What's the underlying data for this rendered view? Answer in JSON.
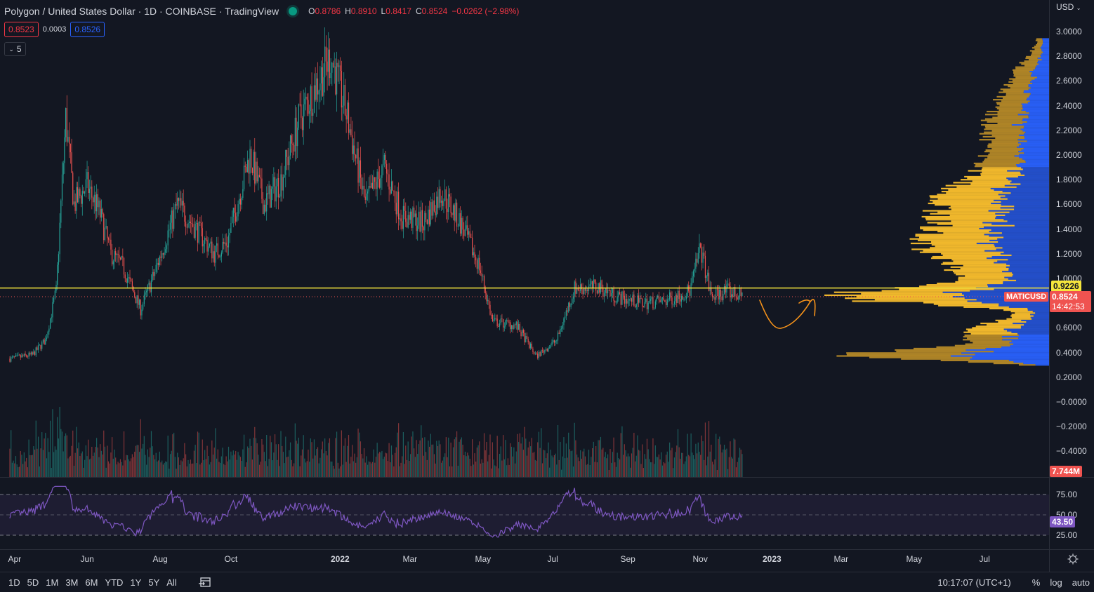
{
  "header": {
    "title": "Polygon / United States Dollar · 1D · COINBASE · TradingView",
    "ohlc": [
      {
        "key": "O",
        "value": "0.8786"
      },
      {
        "key": "H",
        "value": "0.8910"
      },
      {
        "key": "L",
        "value": "0.8417"
      },
      {
        "key": "C",
        "value": "0.8524"
      }
    ],
    "change": "−0.0262 (−2.98%)"
  },
  "quote": {
    "sell": "0.8523",
    "spread": "0.0003",
    "buy": "0.8526"
  },
  "indicator_toggle": {
    "count": "5"
  },
  "price_scale": {
    "currency": "USD",
    "labels": [
      "3.0000",
      "2.8000",
      "2.6000",
      "2.4000",
      "2.2000",
      "2.0000",
      "1.8000",
      "1.6000",
      "1.4000",
      "1.2000",
      "1.0000",
      "0.8000",
      "0.6000",
      "0.4000",
      "0.2000",
      "−0.0000",
      "−0.2000",
      "−0.4000"
    ],
    "values": [
      3.0,
      2.8,
      2.6,
      2.4,
      2.2,
      2.0,
      1.8,
      1.6,
      1.4,
      1.2,
      1.0,
      0.8,
      0.6,
      0.4,
      0.2,
      0.0,
      -0.2,
      -0.4
    ]
  },
  "tags": {
    "level_line": "0.9226",
    "symbol": "MATICUSD",
    "last_price": "0.8524",
    "countdown": "14:42:53",
    "volume": "7.744M",
    "rsi": "43.50"
  },
  "rsi_scale": {
    "labels": [
      "75.00",
      "50.00",
      "25.00"
    ],
    "values": [
      75,
      50,
      25
    ]
  },
  "time_axis": [
    "Apr",
    "Jun",
    "Aug",
    "Oct",
    "2022",
    "Mar",
    "May",
    "Jul",
    "Sep",
    "Nov",
    "2023",
    "Mar",
    "May",
    "Jul"
  ],
  "bottom_bar": {
    "ranges": [
      "1D",
      "5D",
      "1M",
      "3M",
      "6M",
      "YTD",
      "1Y",
      "5Y",
      "All"
    ],
    "clock": "10:17:07 (UTC+1)",
    "percent": "%",
    "log": "log",
    "auto": "auto"
  },
  "colors": {
    "up": "#26a69a",
    "down": "#ef5350",
    "level_line": "#f5e63c",
    "rsi_line": "#7e57c2",
    "profile_up": "#fbc02d",
    "profile_down": "#2962ff",
    "drawing": "#f7931a"
  },
  "chart_data": {
    "type": "candlestick",
    "symbol": "MATICUSD",
    "timeframe": "1D",
    "x_range": [
      "2021-04",
      "2023-07"
    ],
    "y_range": [
      -0.45,
      3.1
    ],
    "price_path": [
      [
        "2021-04-01",
        0.35
      ],
      [
        "2021-04-20",
        0.38
      ],
      [
        "2021-05-01",
        0.5
      ],
      [
        "2021-05-10",
        0.9
      ],
      [
        "2021-05-18",
        2.3
      ],
      [
        "2021-05-25",
        1.6
      ],
      [
        "2021-06-05",
        1.75
      ],
      [
        "2021-06-15",
        1.55
      ],
      [
        "2021-06-25",
        1.2
      ],
      [
        "2021-07-05",
        1.1
      ],
      [
        "2021-07-20",
        0.75
      ],
      [
        "2021-08-01",
        1.05
      ],
      [
        "2021-08-20",
        1.6
      ],
      [
        "2021-09-01",
        1.45
      ],
      [
        "2021-09-20",
        1.2
      ],
      [
        "2021-10-01",
        1.3
      ],
      [
        "2021-10-20",
        2.0
      ],
      [
        "2021-11-01",
        1.6
      ],
      [
        "2021-11-15",
        1.8
      ],
      [
        "2021-12-01",
        2.3
      ],
      [
        "2021-12-27",
        2.8
      ],
      [
        "2022-01-10",
        2.3
      ],
      [
        "2022-01-25",
        1.6
      ],
      [
        "2022-02-10",
        1.9
      ],
      [
        "2022-02-25",
        1.5
      ],
      [
        "2022-03-15",
        1.45
      ],
      [
        "2022-03-30",
        1.7
      ],
      [
        "2022-04-15",
        1.45
      ],
      [
        "2022-05-01",
        1.1
      ],
      [
        "2022-05-12",
        0.65
      ],
      [
        "2022-06-01",
        0.62
      ],
      [
        "2022-06-18",
        0.37
      ],
      [
        "2022-07-05",
        0.5
      ],
      [
        "2022-07-20",
        0.92
      ],
      [
        "2022-08-10",
        0.93
      ],
      [
        "2022-08-25",
        0.85
      ],
      [
        "2022-09-15",
        0.8
      ],
      [
        "2022-10-05",
        0.82
      ],
      [
        "2022-10-25",
        0.9
      ],
      [
        "2022-11-03",
        1.25
      ],
      [
        "2022-11-12",
        0.85
      ],
      [
        "2022-11-25",
        0.9
      ],
      [
        "2022-12-08",
        0.8524
      ]
    ],
    "volume_last": "7.744M",
    "rsi_last": 43.5,
    "horizontal_level": 0.9226,
    "last_close": 0.8524
  }
}
